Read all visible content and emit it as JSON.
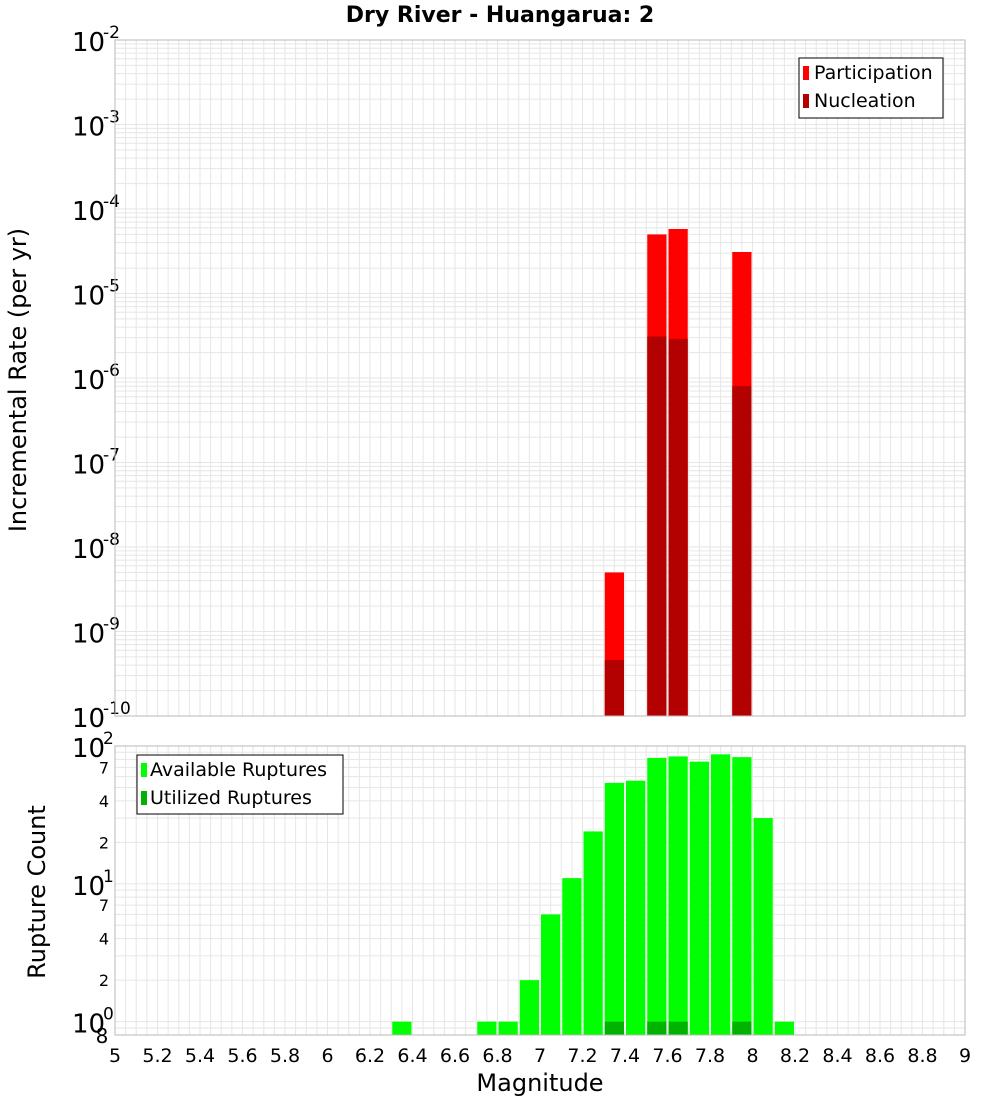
{
  "chart_data": [
    {
      "type": "bar",
      "title": "Dry River - Huangarua: 2",
      "xlabel": "",
      "ylabel": "Incremental Rate (per yr)",
      "yscale": "log",
      "ylim": [
        1e-10,
        0.01
      ],
      "xlim": [
        5,
        9
      ],
      "bin_width": 0.1,
      "y_ticks": [
        {
          "exp": "-10"
        },
        {
          "exp": "-9"
        },
        {
          "exp": "-8"
        },
        {
          "exp": "-7"
        },
        {
          "exp": "-6"
        },
        {
          "exp": "-5"
        },
        {
          "exp": "-4"
        },
        {
          "exp": "-3"
        },
        {
          "exp": "-2"
        }
      ],
      "legend_position": "top-right",
      "series": [
        {
          "name": "Participation",
          "color": "#ff0000",
          "x": [
            7.35,
            7.55,
            7.65,
            7.95
          ],
          "values": [
            5e-09,
            5e-05,
            5.8e-05,
            3.1e-05
          ]
        },
        {
          "name": "Nucleation",
          "color": "#b30000",
          "x": [
            7.35,
            7.55,
            7.65,
            7.95
          ],
          "values": [
            4.6e-10,
            3.1e-06,
            2.9e-06,
            8e-07
          ]
        }
      ]
    },
    {
      "type": "bar",
      "title": "",
      "xlabel": "Magnitude",
      "ylabel": "Rupture Count",
      "yscale": "log",
      "ylim": [
        0.8,
        100
      ],
      "xlim": [
        5,
        9
      ],
      "bin_width": 0.1,
      "x_ticks": [
        "5",
        "5.2",
        "5.4",
        "5.6",
        "5.8",
        "6",
        "6.2",
        "6.4",
        "6.6",
        "6.8",
        "7",
        "7.2",
        "7.4",
        "7.6",
        "7.8",
        "8",
        "8.2",
        "8.4",
        "8.6",
        "8.8",
        "9"
      ],
      "y_major_ticks": [
        {
          "base": "10",
          "exp": "0"
        },
        {
          "base": "10",
          "exp": "1"
        },
        {
          "base": "10",
          "exp": "2"
        }
      ],
      "y_minor_labels": [
        {
          "value": 2,
          "label": "2"
        },
        {
          "value": 4,
          "label": "4"
        },
        {
          "value": 7,
          "label": "7"
        },
        {
          "value": 20,
          "label": "2"
        },
        {
          "value": 40,
          "label": "4"
        },
        {
          "value": 70,
          "label": "7"
        }
      ],
      "y_bottom_label": "8",
      "legend_position": "top-left",
      "series": [
        {
          "name": "Available Ruptures",
          "color": "#00ff00",
          "x": [
            6.35,
            6.75,
            6.85,
            6.95,
            7.05,
            7.15,
            7.25,
            7.35,
            7.45,
            7.55,
            7.65,
            7.75,
            7.85,
            7.95,
            8.05,
            8.15
          ],
          "values": [
            1,
            1,
            1,
            2,
            6,
            11,
            24,
            54,
            56,
            82,
            84,
            77,
            87,
            83,
            30,
            1
          ]
        },
        {
          "name": "Utilized Ruptures",
          "color": "#00b300",
          "x": [
            7.35,
            7.55,
            7.65,
            7.95
          ],
          "values": [
            1,
            1,
            1,
            1
          ]
        }
      ]
    }
  ]
}
